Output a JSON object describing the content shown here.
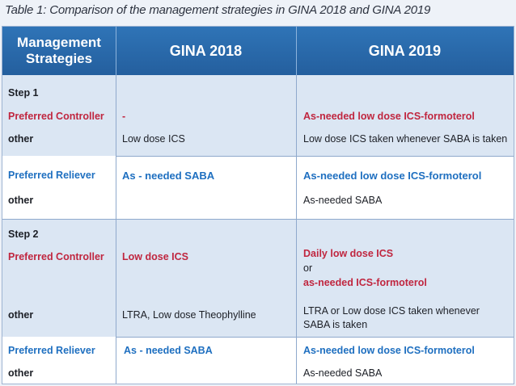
{
  "caption": "Table 1: Comparison of the management strategies in GINA 2018 and GINA 2019",
  "header": {
    "col1": "Management Strategies",
    "col2": "GINA 2018",
    "col3": "GINA 2019"
  },
  "step1": {
    "title": "Step 1",
    "controller_label": "Preferred Controller",
    "other1_label": "other",
    "reliever_label": "Preferred Reliever",
    "other2_label": "other",
    "gina2018": {
      "controller": "-",
      "other1": "Low dose ICS",
      "reliever": "As - needed SABA"
    },
    "gina2019": {
      "controller": "As-needed low dose ICS-formoterol",
      "other1": "Low dose ICS taken whenever SABA is taken",
      "reliever": "As-needed low dose ICS-formoterol",
      "other2": "As-needed SABA"
    }
  },
  "step2": {
    "title": "Step 2",
    "controller_label": "Preferred Controller",
    "other1_label": "other",
    "reliever_label": "Preferred Reliever",
    "other2_label": "other",
    "gina2018": {
      "controller": "Low dose ICS",
      "other1": "LTRA, Low dose Theophylline",
      "reliever": "As - needed SABA"
    },
    "gina2019": {
      "controller_a": "Daily low dose ICS",
      "controller_or": "or",
      "controller_b": "as-needed ICS-formoterol",
      "other1": "LTRA or Low dose ICS taken whenever SABA is taken",
      "reliever": "As-needed low dose ICS-formoterol",
      "other2": "As-needed SABA"
    }
  },
  "colors": {
    "header_bg": "#2a6aab",
    "band_bg": "#dbe6f3",
    "controller_text": "#c0263f",
    "reliever_text": "#1e6fc0"
  }
}
